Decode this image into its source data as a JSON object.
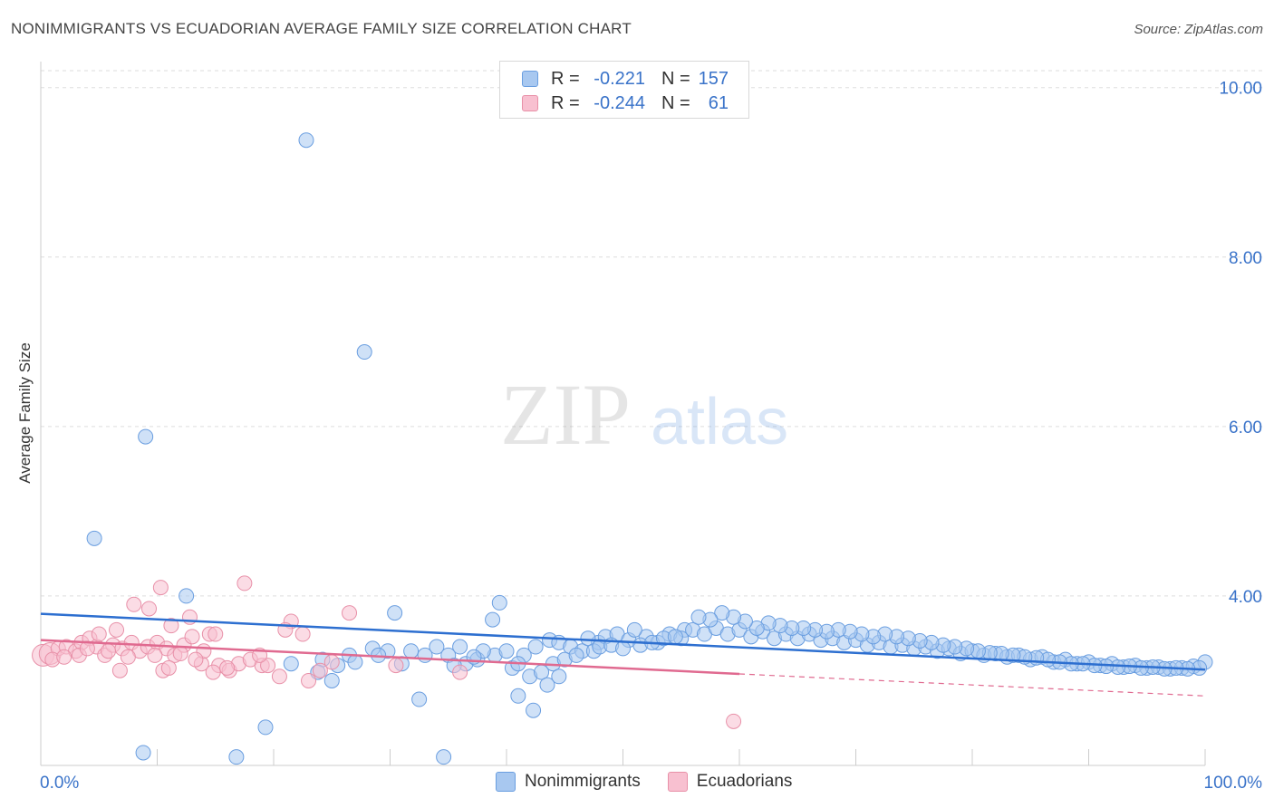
{
  "title": "NONIMMIGRANTS VS ECUADORIAN AVERAGE FAMILY SIZE CORRELATION CHART",
  "source": "Source: ZipAtlas.com",
  "watermark": {
    "zip": "ZIP",
    "atlas": "atlas"
  },
  "legend": {
    "rows": [
      {
        "r_label": "R =",
        "r_value": "-0.221",
        "n_label": "N =",
        "n_value": "157",
        "color": "#a8c8f0",
        "border": "#6a9ee0"
      },
      {
        "r_label": "R =",
        "r_value": "-0.244",
        "n_label": "N =",
        "n_value": "61",
        "color": "#f8c0d0",
        "border": "#e890a8"
      }
    ]
  },
  "bottom_legend": [
    {
      "label": "Nonimmigrants",
      "color": "#a8c8f0",
      "border": "#6a9ee0"
    },
    {
      "label": "Ecuadorians",
      "color": "#f8c0d0",
      "border": "#e890a8"
    }
  ],
  "chart_data": {
    "type": "scatter",
    "ylabel": "Average Family Size",
    "xlabel": "",
    "x_tick_labels": [
      "0.0%",
      "100.0%"
    ],
    "y_ticks": [
      4.0,
      6.0,
      8.0,
      10.0
    ],
    "y_tick_labels": [
      "4.00",
      "6.00",
      "8.00",
      "10.00"
    ],
    "xlim": [
      0,
      100
    ],
    "ylim": [
      2.0,
      10.2
    ],
    "grid": true,
    "series": [
      {
        "name": "Nonimmigrants",
        "color": "#6a9ee0",
        "fill": "#a8c8f0",
        "trend": {
          "x0": 0,
          "y0": 3.79,
          "x1": 100,
          "y1": 3.13,
          "color": "#2d6fd0"
        },
        "points": [
          [
            22.8,
            9.38
          ],
          [
            27.8,
            6.88
          ],
          [
            9.0,
            5.88
          ],
          [
            4.6,
            4.68
          ],
          [
            12.5,
            4.0
          ],
          [
            8.8,
            2.15
          ],
          [
            19.3,
            2.45
          ],
          [
            16.8,
            2.1
          ],
          [
            34.6,
            2.1
          ],
          [
            32.5,
            2.78
          ],
          [
            39.4,
            3.92
          ],
          [
            30.4,
            3.8
          ],
          [
            38.8,
            3.72
          ],
          [
            52.0,
            3.52
          ],
          [
            55.3,
            3.6
          ],
          [
            47.9,
            3.45
          ],
          [
            43.7,
            3.48
          ],
          [
            26.5,
            3.3
          ],
          [
            28.5,
            3.38
          ],
          [
            29.8,
            3.35
          ],
          [
            31.0,
            3.2
          ],
          [
            33.0,
            3.3
          ],
          [
            35.0,
            3.3
          ],
          [
            36.5,
            3.2
          ],
          [
            37.5,
            3.25
          ],
          [
            39.0,
            3.3
          ],
          [
            40.0,
            3.35
          ],
          [
            41.5,
            3.3
          ],
          [
            42.5,
            3.4
          ],
          [
            44.5,
            3.45
          ],
          [
            45.5,
            3.4
          ],
          [
            46.5,
            3.35
          ],
          [
            47.0,
            3.5
          ],
          [
            48.5,
            3.52
          ],
          [
            49.5,
            3.55
          ],
          [
            50.5,
            3.48
          ],
          [
            51.0,
            3.6
          ],
          [
            53.0,
            3.45
          ],
          [
            54.0,
            3.55
          ],
          [
            55.0,
            3.5
          ],
          [
            56.0,
            3.6
          ],
          [
            57.0,
            3.55
          ],
          [
            58.0,
            3.62
          ],
          [
            59.0,
            3.55
          ],
          [
            60.0,
            3.6
          ],
          [
            61.0,
            3.52
          ],
          [
            62.0,
            3.58
          ],
          [
            63.0,
            3.5
          ],
          [
            64.0,
            3.55
          ],
          [
            65.0,
            3.5
          ],
          [
            66.0,
            3.55
          ],
          [
            67.0,
            3.48
          ],
          [
            68.0,
            3.5
          ],
          [
            69.0,
            3.45
          ],
          [
            70.0,
            3.48
          ],
          [
            71.0,
            3.42
          ],
          [
            72.0,
            3.45
          ],
          [
            73.0,
            3.4
          ],
          [
            74.0,
            3.42
          ],
          [
            75.0,
            3.38
          ],
          [
            76.0,
            3.4
          ],
          [
            77.0,
            3.35
          ],
          [
            78.0,
            3.38
          ],
          [
            79.0,
            3.32
          ],
          [
            80.0,
            3.35
          ],
          [
            81.0,
            3.3
          ],
          [
            82.0,
            3.32
          ],
          [
            83.0,
            3.28
          ],
          [
            84.0,
            3.3
          ],
          [
            85.0,
            3.25
          ],
          [
            86.0,
            3.28
          ],
          [
            87.0,
            3.22
          ],
          [
            88.0,
            3.25
          ],
          [
            89.0,
            3.2
          ],
          [
            90.0,
            3.22
          ],
          [
            91.0,
            3.18
          ],
          [
            92.0,
            3.2
          ],
          [
            93.0,
            3.16
          ],
          [
            94.0,
            3.18
          ],
          [
            95.0,
            3.15
          ],
          [
            96.0,
            3.16
          ],
          [
            97.0,
            3.14
          ],
          [
            98.0,
            3.15
          ],
          [
            99.0,
            3.17
          ],
          [
            100.0,
            3.22
          ],
          [
            99.5,
            3.15
          ],
          [
            98.5,
            3.14
          ],
          [
            97.5,
            3.15
          ],
          [
            96.5,
            3.14
          ],
          [
            95.5,
            3.16
          ],
          [
            94.5,
            3.15
          ],
          [
            93.5,
            3.17
          ],
          [
            92.5,
            3.16
          ],
          [
            91.5,
            3.17
          ],
          [
            90.5,
            3.18
          ],
          [
            89.5,
            3.2
          ],
          [
            88.5,
            3.2
          ],
          [
            87.5,
            3.22
          ],
          [
            86.5,
            3.25
          ],
          [
            85.5,
            3.27
          ],
          [
            84.5,
            3.28
          ],
          [
            83.5,
            3.3
          ],
          [
            82.5,
            3.32
          ],
          [
            81.5,
            3.33
          ],
          [
            80.5,
            3.35
          ],
          [
            79.5,
            3.38
          ],
          [
            78.5,
            3.4
          ],
          [
            77.5,
            3.42
          ],
          [
            76.5,
            3.45
          ],
          [
            75.5,
            3.47
          ],
          [
            74.5,
            3.5
          ],
          [
            73.5,
            3.52
          ],
          [
            72.5,
            3.55
          ],
          [
            71.5,
            3.52
          ],
          [
            70.5,
            3.55
          ],
          [
            69.5,
            3.58
          ],
          [
            68.5,
            3.6
          ],
          [
            67.5,
            3.58
          ],
          [
            66.5,
            3.6
          ],
          [
            65.5,
            3.62
          ],
          [
            64.5,
            3.62
          ],
          [
            63.5,
            3.65
          ],
          [
            62.5,
            3.68
          ],
          [
            61.5,
            3.62
          ],
          [
            60.5,
            3.7
          ],
          [
            59.5,
            3.75
          ],
          [
            58.5,
            3.8
          ],
          [
            57.5,
            3.72
          ],
          [
            56.5,
            3.75
          ],
          [
            24.2,
            3.25
          ],
          [
            25.5,
            3.18
          ],
          [
            27.0,
            3.22
          ],
          [
            29.0,
            3.3
          ],
          [
            34.0,
            3.4
          ],
          [
            36.0,
            3.4
          ],
          [
            38.0,
            3.35
          ],
          [
            40.5,
            3.15
          ],
          [
            41.0,
            3.2
          ],
          [
            42.0,
            3.05
          ],
          [
            43.0,
            3.1
          ],
          [
            44.0,
            3.2
          ],
          [
            45.0,
            3.25
          ],
          [
            46.0,
            3.3
          ],
          [
            47.5,
            3.35
          ],
          [
            48.0,
            3.4
          ],
          [
            49.0,
            3.42
          ],
          [
            50.0,
            3.38
          ],
          [
            51.5,
            3.42
          ],
          [
            52.5,
            3.45
          ],
          [
            53.5,
            3.5
          ],
          [
            54.5,
            3.52
          ],
          [
            41.0,
            2.82
          ],
          [
            42.3,
            2.65
          ],
          [
            43.5,
            2.95
          ],
          [
            44.5,
            3.05
          ],
          [
            23.8,
            3.1
          ],
          [
            21.5,
            3.2
          ],
          [
            25.0,
            3.0
          ],
          [
            35.5,
            3.18
          ],
          [
            37.2,
            3.28
          ],
          [
            31.8,
            3.35
          ]
        ]
      },
      {
        "name": "Ecuadorians",
        "color": "#e890a8",
        "fill": "#f8c0d0",
        "trend": {
          "x0": 0,
          "y0": 3.48,
          "x1": 60,
          "y1": 3.08,
          "x2": 100,
          "y2": 2.82,
          "color": "#e06a90"
        },
        "points": [
          [
            0.2,
            3.3
          ],
          [
            0.8,
            3.32
          ],
          [
            1.5,
            3.38
          ],
          [
            2.2,
            3.4
          ],
          [
            3.0,
            3.35
          ],
          [
            3.5,
            3.45
          ],
          [
            4.2,
            3.5
          ],
          [
            4.8,
            3.4
          ],
          [
            5.5,
            3.3
          ],
          [
            6.2,
            3.42
          ],
          [
            7.0,
            3.38
          ],
          [
            7.8,
            3.45
          ],
          [
            8.5,
            3.35
          ],
          [
            9.2,
            3.4
          ],
          [
            10.0,
            3.45
          ],
          [
            10.8,
            3.38
          ],
          [
            11.5,
            3.3
          ],
          [
            12.3,
            3.42
          ],
          [
            13.0,
            3.52
          ],
          [
            13.8,
            3.2
          ],
          [
            14.5,
            3.55
          ],
          [
            15.3,
            3.18
          ],
          [
            16.2,
            3.12
          ],
          [
            17.0,
            3.2
          ],
          [
            18.0,
            3.25
          ],
          [
            19.0,
            3.18
          ],
          [
            20.5,
            3.05
          ],
          [
            21.5,
            3.7
          ],
          [
            22.5,
            3.55
          ],
          [
            24.0,
            3.12
          ],
          [
            25.0,
            3.22
          ],
          [
            26.5,
            3.8
          ],
          [
            5.0,
            3.55
          ],
          [
            6.5,
            3.6
          ],
          [
            8.0,
            3.9
          ],
          [
            9.3,
            3.85
          ],
          [
            10.3,
            4.1
          ],
          [
            11.2,
            3.65
          ],
          [
            12.8,
            3.75
          ],
          [
            14.0,
            3.35
          ],
          [
            15.0,
            3.55
          ],
          [
            17.5,
            4.15
          ],
          [
            19.5,
            3.18
          ],
          [
            21.0,
            3.6
          ],
          [
            23.0,
            3.0
          ],
          [
            30.5,
            3.18
          ],
          [
            36.0,
            3.1
          ],
          [
            1.0,
            3.25
          ],
          [
            2.0,
            3.28
          ],
          [
            3.3,
            3.3
          ],
          [
            4.0,
            3.38
          ],
          [
            5.8,
            3.35
          ],
          [
            6.8,
            3.12
          ],
          [
            7.5,
            3.28
          ],
          [
            9.8,
            3.3
          ],
          [
            10.5,
            3.12
          ],
          [
            11.0,
            3.15
          ],
          [
            12.0,
            3.32
          ],
          [
            13.3,
            3.25
          ],
          [
            14.8,
            3.1
          ],
          [
            16.0,
            3.15
          ],
          [
            18.8,
            3.3
          ],
          [
            59.5,
            2.52
          ]
        ]
      }
    ]
  }
}
